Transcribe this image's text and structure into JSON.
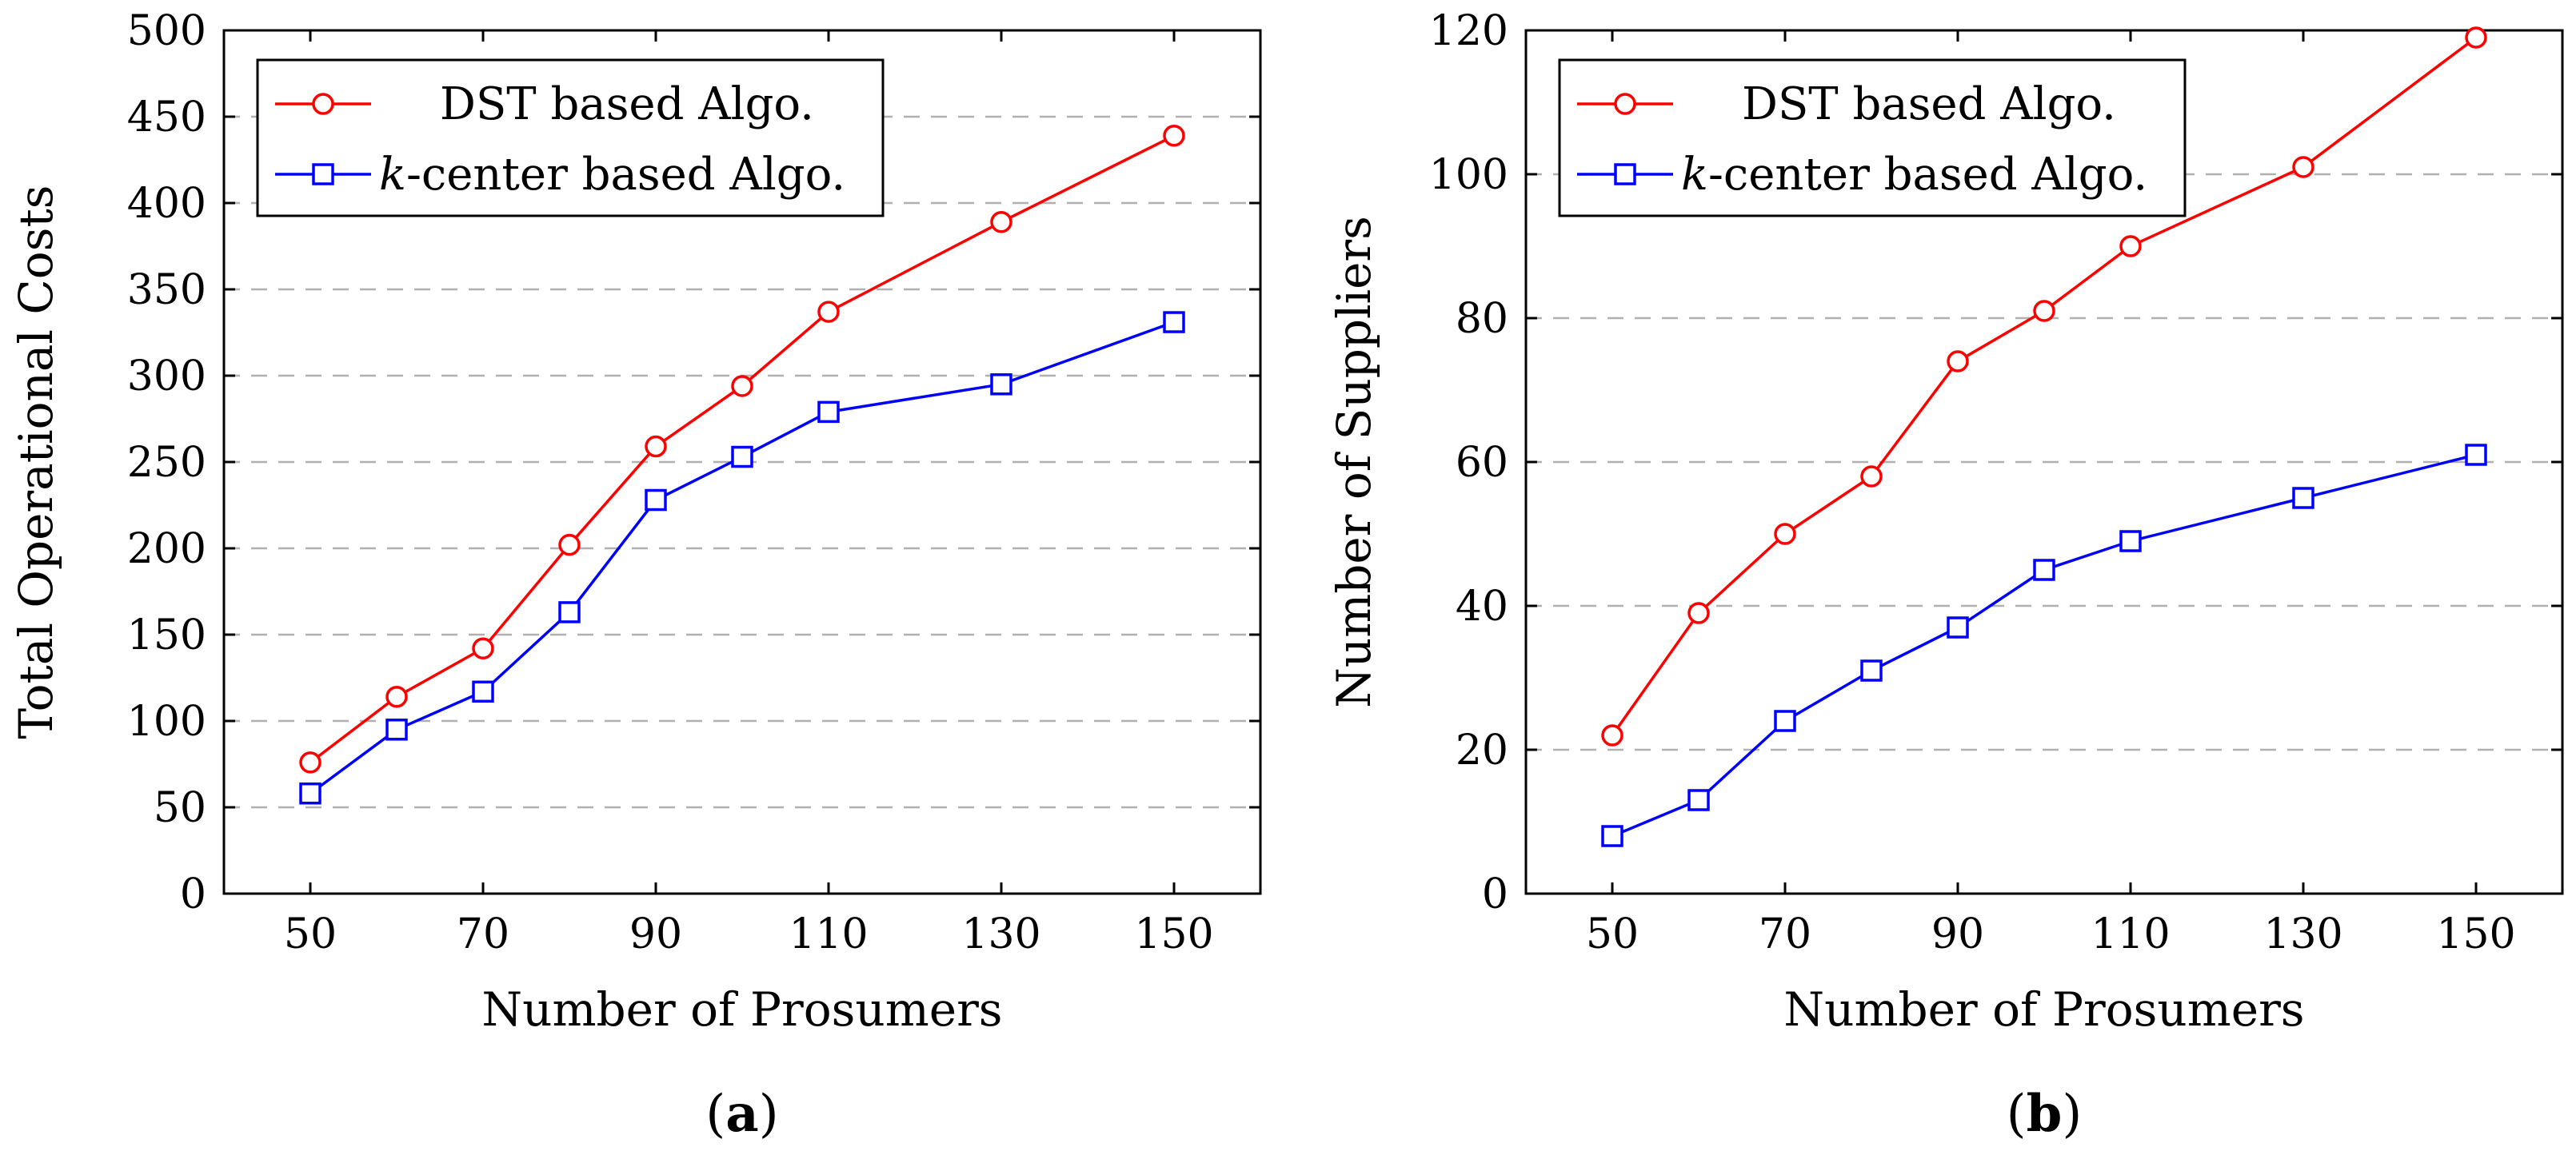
{
  "chart_data": [
    {
      "type": "line",
      "panel_label": "a",
      "xlabel": "Number of Prosumers",
      "ylabel": "Total Operational Costs",
      "xlim": [
        40,
        160
      ],
      "ylim": [
        0,
        500
      ],
      "xticks": [
        50,
        70,
        90,
        110,
        130,
        150
      ],
      "yticks": [
        0,
        50,
        100,
        150,
        200,
        250,
        300,
        350,
        400,
        450,
        500
      ],
      "grid": "horizontal dashed",
      "legend_position": "top-left",
      "series": [
        {
          "name": "DST based Algo.",
          "color": "#ff0000",
          "marker": "circle",
          "x": [
            50,
            60,
            70,
            80,
            90,
            100,
            110,
            130,
            150
          ],
          "y": [
            76,
            114,
            142,
            202,
            259,
            294,
            337,
            389,
            439
          ]
        },
        {
          "name": "k-center based Algo.",
          "name_italic_prefix": "k",
          "name_rest": "-center based Algo.",
          "color": "#0000ff",
          "marker": "square",
          "x": [
            50,
            60,
            70,
            80,
            90,
            100,
            110,
            130,
            150
          ],
          "y": [
            58,
            95,
            117,
            163,
            228,
            253,
            279,
            295,
            331
          ]
        }
      ]
    },
    {
      "type": "line",
      "panel_label": "b",
      "xlabel": "Number of Prosumers",
      "ylabel": "Number of Suppliers",
      "xlim": [
        40,
        160
      ],
      "ylim": [
        0,
        120
      ],
      "xticks": [
        50,
        70,
        90,
        110,
        130,
        150
      ],
      "yticks": [
        0,
        20,
        40,
        60,
        80,
        100,
        120
      ],
      "grid": "horizontal dashed",
      "legend_position": "top-left",
      "series": [
        {
          "name": "DST based Algo.",
          "color": "#ff0000",
          "marker": "circle",
          "x": [
            50,
            60,
            70,
            80,
            90,
            100,
            110,
            130,
            150
          ],
          "y": [
            22,
            39,
            50,
            58,
            74,
            81,
            90,
            101,
            119
          ]
        },
        {
          "name": "k-center based Algo.",
          "name_italic_prefix": "k",
          "name_rest": "-center based Algo.",
          "color": "#0000ff",
          "marker": "square",
          "x": [
            50,
            60,
            70,
            80,
            90,
            100,
            110,
            130,
            150
          ],
          "y": [
            8,
            13,
            24,
            31,
            37,
            45,
            49,
            55,
            61
          ]
        }
      ]
    }
  ]
}
